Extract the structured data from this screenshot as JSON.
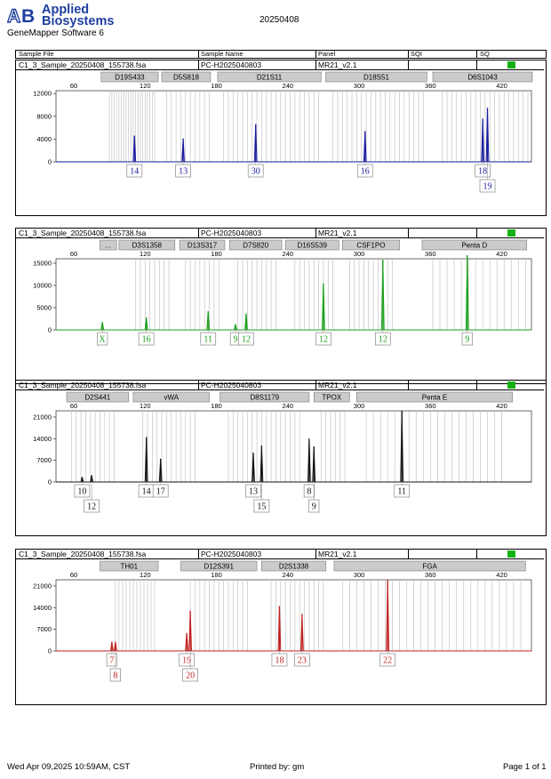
{
  "header": {
    "brand_line1": "Applied",
    "brand_line2": "Biosystems",
    "software": "GeneMapper Software 6",
    "run_date": "20250408"
  },
  "columns": {
    "sample_file": "Sample File",
    "sample_name": "Sample Name",
    "panel": "Panel",
    "sqi": "SQI",
    "sq": "SQ"
  },
  "colors": {
    "blue": "#1a1aa0",
    "green": "#1aa01a",
    "black": "#111111",
    "red": "#c02020",
    "sq_green": "#13b113"
  },
  "panels": [
    {
      "file": "C1_3_Sample_20250408_155738.fsa",
      "name": "PC-H2025040803",
      "panel": "MR21_v2.1"
    },
    {
      "file": "C1_3_Sample_20250408_155738.fsa",
      "name": "PC-H2025040803",
      "panel": "MR21_v2.1"
    },
    {
      "file": "C1_3_Sample_20250408_155738.fsa",
      "name": "PC-H2025040803",
      "panel": "MR21_v2.1"
    },
    {
      "file": "C1_3_Sample_20250408_155738.fsa",
      "name": "PC-H2025040803",
      "panel": "MR21_v2.1"
    }
  ],
  "chart_data": [
    {
      "type": "line",
      "color": "blue",
      "x_ticks": [
        60,
        120,
        180,
        240,
        300,
        360,
        420
      ],
      "xlim": [
        45,
        445
      ],
      "y_ticks": [
        0,
        4000,
        8000,
        12000
      ],
      "ylim": [
        0,
        12500
      ],
      "markers": [
        {
          "label": "D19S433",
          "start": 83,
          "end": 131
        },
        {
          "label": "D5S818",
          "start": 134,
          "end": 175
        },
        {
          "label": "D21S11",
          "start": 181,
          "end": 268
        },
        {
          "label": "D18S51",
          "start": 272,
          "end": 357
        },
        {
          "label": "D6S1043",
          "start": 362,
          "end": 451
        }
      ],
      "bins": [
        90,
        92,
        94,
        96,
        98,
        100,
        102,
        104,
        106,
        108,
        110,
        112,
        114,
        116,
        118,
        120,
        122,
        124,
        126,
        128,
        138,
        142,
        146,
        150,
        154,
        158,
        162,
        166,
        170,
        174,
        186,
        190,
        194,
        198,
        202,
        206,
        210,
        214,
        218,
        222,
        226,
        230,
        234,
        238,
        242,
        246,
        250,
        254,
        258,
        262,
        266,
        278,
        282,
        286,
        290,
        294,
        298,
        302,
        306,
        310,
        314,
        318,
        322,
        326,
        330,
        334,
        338,
        342,
        346,
        350,
        354,
        370,
        374,
        378,
        382,
        386,
        390,
        394,
        398,
        402,
        406,
        410,
        414,
        418,
        422,
        426,
        430,
        434,
        438,
        442
      ],
      "peaks": [
        {
          "x": 111,
          "y": 4600
        },
        {
          "x": 152,
          "y": 4100
        },
        {
          "x": 213,
          "y": 6600
        },
        {
          "x": 305,
          "y": 5400
        },
        {
          "x": 404,
          "y": 7600
        },
        {
          "x": 408,
          "y": 9500
        }
      ],
      "alleles": [
        {
          "label": "14",
          "x": 111,
          "row": 0
        },
        {
          "label": "13",
          "x": 152,
          "row": 0
        },
        {
          "label": "30",
          "x": 213,
          "row": 0
        },
        {
          "label": "16",
          "x": 305,
          "row": 0
        },
        {
          "label": "18",
          "x": 404,
          "row": 0
        },
        {
          "label": "19",
          "x": 408,
          "row": 1
        }
      ]
    },
    {
      "type": "line",
      "color": "green",
      "x_ticks": [
        60,
        120,
        180,
        240,
        300,
        360,
        420
      ],
      "xlim": [
        45,
        445
      ],
      "y_ticks": [
        0,
        5000,
        10000,
        15000
      ],
      "ylim": [
        0,
        16000
      ],
      "markers": [
        {
          "label": "...",
          "start": 82,
          "end": 96
        },
        {
          "label": "D3S1358",
          "start": 98,
          "end": 145
        },
        {
          "label": "D13S317",
          "start": 149,
          "end": 187
        },
        {
          "label": "D7S820",
          "start": 191,
          "end": 235
        },
        {
          "label": "D16S539",
          "start": 238,
          "end": 283
        },
        {
          "label": "CSF1PO",
          "start": 286,
          "end": 334
        },
        {
          "label": "Penta D",
          "start": 353,
          "end": 441
        }
      ],
      "bins": [
        112,
        116,
        120,
        124,
        128,
        132,
        136,
        140,
        154,
        158,
        162,
        166,
        170,
        174,
        178,
        182,
        198,
        202,
        206,
        210,
        214,
        218,
        222,
        226,
        230,
        246,
        250,
        254,
        258,
        262,
        266,
        270,
        274,
        278,
        292,
        296,
        300,
        304,
        308,
        312,
        316,
        320,
        324,
        328,
        362,
        368,
        374,
        380,
        386,
        392,
        398,
        404,
        410,
        416,
        422,
        428,
        434,
        440
      ],
      "peaks": [
        {
          "x": 84,
          "y": 1800
        },
        {
          "x": 121,
          "y": 2800
        },
        {
          "x": 173,
          "y": 4200
        },
        {
          "x": 196,
          "y": 1300
        },
        {
          "x": 205,
          "y": 3700
        },
        {
          "x": 270,
          "y": 10500
        },
        {
          "x": 320,
          "y": 15800
        },
        {
          "x": 391,
          "y": 16800
        }
      ],
      "alleles": [
        {
          "label": "X",
          "x": 84,
          "row": 0
        },
        {
          "label": "16",
          "x": 121,
          "row": 0
        },
        {
          "label": "11",
          "x": 173,
          "row": 0
        },
        {
          "label": "9",
          "x": 196,
          "row": 0
        },
        {
          "label": "12",
          "x": 205,
          "row": 0
        },
        {
          "label": "12",
          "x": 270,
          "row": 0
        },
        {
          "label": "12",
          "x": 320,
          "row": 0
        },
        {
          "label": "9",
          "x": 391,
          "row": 0
        }
      ]
    },
    {
      "type": "line",
      "color": "black",
      "x_ticks": [
        60,
        120,
        180,
        240,
        300,
        360,
        420
      ],
      "xlim": [
        45,
        445
      ],
      "y_ticks": [
        0,
        7000,
        14000,
        21000
      ],
      "ylim": [
        0,
        23000
      ],
      "markers": [
        {
          "label": "D2S441",
          "start": 54,
          "end": 106
        },
        {
          "label": "vWA",
          "start": 110,
          "end": 174
        },
        {
          "label": "D8S1179",
          "start": 183,
          "end": 258
        },
        {
          "label": "TPOX",
          "start": 262,
          "end": 292
        },
        {
          "label": "Penta E",
          "start": 298,
          "end": 429
        }
      ],
      "bins": [
        58,
        62,
        66,
        70,
        74,
        78,
        82,
        86,
        90,
        94,
        118,
        122,
        126,
        130,
        134,
        138,
        142,
        146,
        150,
        154,
        158,
        162,
        190,
        194,
        198,
        202,
        206,
        210,
        214,
        218,
        222,
        226,
        230,
        234,
        238,
        242,
        246,
        250,
        268,
        272,
        276,
        280,
        284,
        288,
        306,
        312,
        318,
        324,
        330,
        336,
        342,
        348,
        354,
        360,
        366,
        372,
        378,
        384,
        390,
        396,
        402,
        408,
        414,
        420
      ],
      "peaks": [
        {
          "x": 67,
          "y": 1600
        },
        {
          "x": 75,
          "y": 2200
        },
        {
          "x": 121,
          "y": 14500
        },
        {
          "x": 133,
          "y": 7500
        },
        {
          "x": 211,
          "y": 9500
        },
        {
          "x": 218,
          "y": 11800
        },
        {
          "x": 258,
          "y": 14000
        },
        {
          "x": 262,
          "y": 11500
        },
        {
          "x": 336,
          "y": 23000
        }
      ],
      "alleles": [
        {
          "label": "10",
          "x": 67,
          "row": 0
        },
        {
          "label": "12",
          "x": 75,
          "row": 1
        },
        {
          "label": "14",
          "x": 121,
          "row": 0
        },
        {
          "label": "17",
          "x": 133,
          "row": 0
        },
        {
          "label": "13",
          "x": 211,
          "row": 0
        },
        {
          "label": "15",
          "x": 218,
          "row": 1
        },
        {
          "label": "8",
          "x": 258,
          "row": 0
        },
        {
          "label": "9",
          "x": 262,
          "row": 1
        },
        {
          "label": "11",
          "x": 336,
          "row": 0
        }
      ]
    },
    {
      "type": "line",
      "color": "red",
      "x_ticks": [
        60,
        120,
        180,
        240,
        300,
        360,
        420
      ],
      "xlim": [
        45,
        445
      ],
      "y_ticks": [
        0,
        7000,
        14000,
        21000
      ],
      "ylim": [
        0,
        23000
      ],
      "markers": [
        {
          "label": "TH01",
          "start": 82,
          "end": 131
        },
        {
          "label": "D12S391",
          "start": 150,
          "end": 214
        },
        {
          "label": "D2S1338",
          "start": 218,
          "end": 272
        },
        {
          "label": "FGA",
          "start": 279,
          "end": 440
        }
      ],
      "bins": [
        95,
        98,
        101,
        104,
        107,
        110,
        113,
        116,
        119,
        122,
        125,
        128,
        158,
        162,
        166,
        170,
        174,
        178,
        182,
        186,
        190,
        194,
        198,
        202,
        206,
        226,
        230,
        234,
        238,
        242,
        246,
        250,
        254,
        258,
        262,
        266,
        270,
        286,
        292,
        298,
        304,
        310,
        316,
        322,
        328,
        334,
        340,
        346,
        352,
        358,
        364,
        370,
        376,
        382,
        388,
        394,
        400,
        406,
        412,
        418,
        424,
        430,
        436
      ],
      "peaks": [
        {
          "x": 92,
          "y": 3000
        },
        {
          "x": 95,
          "y": 3000
        },
        {
          "x": 155,
          "y": 5800
        },
        {
          "x": 158,
          "y": 13000
        },
        {
          "x": 233,
          "y": 14500
        },
        {
          "x": 252,
          "y": 12000
        },
        {
          "x": 324,
          "y": 23000
        }
      ],
      "alleles": [
        {
          "label": "7",
          "x": 92,
          "row": 0
        },
        {
          "label": "8",
          "x": 95,
          "row": 1
        },
        {
          "label": "19",
          "x": 155,
          "row": 0
        },
        {
          "label": "20",
          "x": 158,
          "row": 1
        },
        {
          "label": "18",
          "x": 233,
          "row": 0
        },
        {
          "label": "23",
          "x": 252,
          "row": 0
        },
        {
          "label": "22",
          "x": 324,
          "row": 0
        }
      ]
    }
  ],
  "footer": {
    "datetime": "Wed Apr 09,2025 10:59AM, CST",
    "printed_by": "Printed by: gm",
    "page": "Page 1 of 1"
  }
}
